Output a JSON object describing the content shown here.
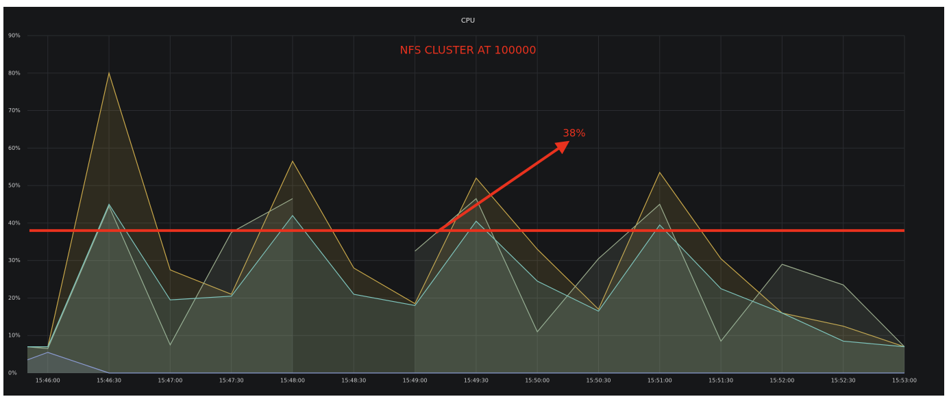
{
  "chart_data": {
    "type": "line",
    "title": "CPU",
    "annotation": "NFS CLUSTER AT 100000",
    "threshold": {
      "value": 38,
      "label": "38%"
    },
    "x": [
      56750,
      56760,
      56790,
      56820,
      56850,
      56880,
      56910,
      56940,
      56970,
      57000,
      57030,
      57060,
      57090,
      57120,
      57150,
      57180
    ],
    "xlim": [
      56750,
      57180
    ],
    "xticks": [
      {
        "value": 56760,
        "label": "15:46:00"
      },
      {
        "value": 56790,
        "label": "15:46:30"
      },
      {
        "value": 56820,
        "label": "15:47:00"
      },
      {
        "value": 56850,
        "label": "15:47:30"
      },
      {
        "value": 56880,
        "label": "15:48:00"
      },
      {
        "value": 56910,
        "label": "15:48:30"
      },
      {
        "value": 56940,
        "label": "15:49:00"
      },
      {
        "value": 56970,
        "label": "15:49:30"
      },
      {
        "value": 57000,
        "label": "15:50:00"
      },
      {
        "value": 57030,
        "label": "15:50:30"
      },
      {
        "value": 57060,
        "label": "15:51:00"
      },
      {
        "value": 57090,
        "label": "15:51:30"
      },
      {
        "value": 57120,
        "label": "15:52:00"
      },
      {
        "value": 57150,
        "label": "15:52:30"
      },
      {
        "value": 57180,
        "label": "15:53:00"
      }
    ],
    "ylim": [
      0,
      90
    ],
    "yticks": [
      {
        "value": 0,
        "label": "0%"
      },
      {
        "value": 10,
        "label": "10%"
      },
      {
        "value": 20,
        "label": "20%"
      },
      {
        "value": 30,
        "label": "30%"
      },
      {
        "value": 40,
        "label": "40%"
      },
      {
        "value": 50,
        "label": "50%"
      },
      {
        "value": 60,
        "label": "60%"
      },
      {
        "value": 70,
        "label": "70%"
      },
      {
        "value": 80,
        "label": "80%"
      },
      {
        "value": 90,
        "label": "90%"
      }
    ],
    "grid": true,
    "series": [
      {
        "color": "#c9a84a",
        "values": [
          7,
          7,
          80,
          27.5,
          21,
          56.5,
          28,
          18.5,
          52,
          33,
          17,
          53.5,
          30.5,
          16,
          12.5,
          7
        ]
      },
      {
        "color": "#9aab8c",
        "values": [
          7,
          6.5,
          44.5,
          7.5,
          37.5,
          46.5,
          null,
          32.5,
          46.5,
          11,
          30.5,
          45,
          8.5,
          29,
          23.5,
          7
        ]
      },
      {
        "color": "#7ec4bc",
        "values": [
          7,
          7,
          45,
          19.5,
          20.5,
          42,
          21,
          18,
          40.5,
          24.5,
          16.5,
          39.5,
          22.5,
          16,
          8.5,
          7
        ]
      },
      {
        "color": "#8a9ad0",
        "values": [
          3.5,
          5.5,
          0,
          0,
          0,
          0,
          0,
          0,
          0,
          0,
          0,
          0,
          0,
          0,
          0,
          0
        ]
      }
    ]
  }
}
